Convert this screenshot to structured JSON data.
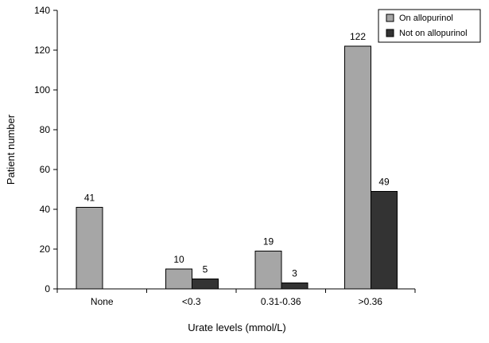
{
  "chart_data": {
    "type": "bar",
    "categories": [
      "None",
      "<0.3",
      "0.31-0.36",
      ">0.36"
    ],
    "series": [
      {
        "name": "On allopurinol",
        "color": "#a6a6a6",
        "values": [
          41,
          10,
          19,
          122
        ]
      },
      {
        "name": "Not on allopurinol",
        "color": "#333333",
        "values": [
          null,
          5,
          3,
          49
        ]
      }
    ],
    "title": "",
    "xlabel": "Urate levels (mmol/L)",
    "ylabel": "Patient number",
    "ylim": [
      0,
      140
    ],
    "yticks": [
      0,
      20,
      40,
      60,
      80,
      100,
      120,
      140
    ],
    "grid": false,
    "legend_position": "top-right"
  }
}
